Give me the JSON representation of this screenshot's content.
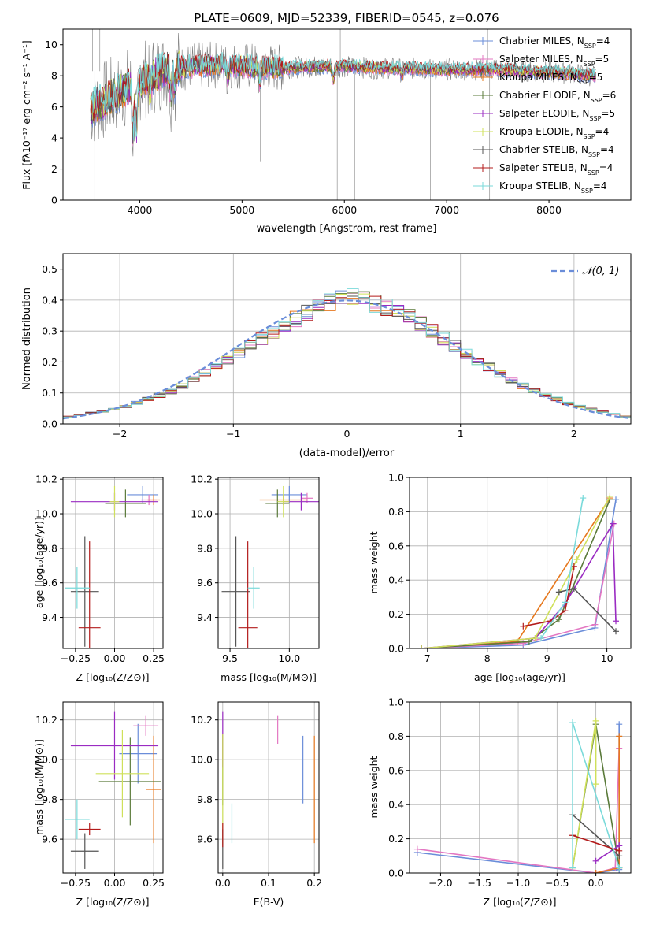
{
  "colors": {
    "Chabrier MILES": "#6a8dd9",
    "Salpeter MILES": "#e377c2",
    "Kroupa MILES": "#e6781e",
    "Chabrier ELODIE": "#5a7a3a",
    "Salpeter ELODIE": "#9a2bc2",
    "Kroupa ELODIE": "#cfe05a",
    "Chabrier STELIB": "#555555",
    "Salpeter STELIB": "#b31b1b",
    "Kroupa STELIB": "#7adada",
    "normal": "#6a8dd9",
    "data": "#808080"
  },
  "chart_data": [
    {
      "type": "line",
      "title": "PLATE=0609, MJD=52339, FIBERID=0545, z=0.076",
      "xlabel": "wavelength [Angstrom, rest frame]",
      "ylabel": "Flux [fλ10⁻¹⁷ erg cm⁻² s⁻¹ A⁻¹]",
      "xlim": [
        3250,
        8800
      ],
      "ylim": [
        0,
        11
      ],
      "xticks": [
        4000,
        5000,
        6000,
        7000,
        8000
      ],
      "yticks": [
        0,
        2,
        4,
        6,
        8,
        10
      ],
      "legend": [
        "Chabrier MILES, N_SSP=4",
        "Salpeter MILES, N_SSP=5",
        "Kroupa MILES, N_SSP=5",
        "Chabrier ELODIE, N_SSP=6",
        "Salpeter ELODIE, N_SSP=5",
        "Kroupa ELODIE, N_SSP=4",
        "Chabrier STELIB, N_SSP=4",
        "Salpeter STELIB, N_SSP=4",
        "Kroupa STELIB, N_SSP=4"
      ],
      "legend_position": "right",
      "series_note": "observed spectrum (grey) from ~3550 to ~8450 A, flux ~6-10.5 with deep absorption in the blue; model fits overlaid",
      "continuum": {
        "x": [
          3500,
          3700,
          3900,
          4100,
          4300,
          4500,
          4800,
          5100,
          5400,
          5700,
          6000,
          6300,
          6600,
          6900,
          7200,
          7500,
          7800,
          8100,
          8450
        ],
        "y": [
          5.8,
          6.6,
          7.3,
          8.0,
          8.4,
          8.6,
          8.7,
          8.6,
          8.5,
          8.6,
          8.6,
          8.5,
          8.5,
          8.4,
          8.4,
          8.4,
          8.3,
          8.2,
          8.0
        ]
      }
    },
    {
      "type": "line",
      "xlabel": "(data-model)/error",
      "ylabel": "Normed distribution",
      "xlim": [
        -2.5,
        2.5
      ],
      "ylim": [
        0,
        0.55
      ],
      "xticks": [
        -2,
        -1,
        0,
        1,
        2
      ],
      "yticks": [
        0.0,
        0.1,
        0.2,
        0.3,
        0.4,
        0.5
      ],
      "legend": [
        "𝒩(0, 1)"
      ],
      "legend_position": "top-right",
      "bin_edges_step": 0.1,
      "histogram_envelope": {
        "x": [
          -2.5,
          -2.0,
          -1.5,
          -1.0,
          -0.5,
          0.0,
          0.5,
          1.0,
          1.5,
          2.0,
          2.5
        ],
        "y": [
          0.02,
          0.05,
          0.11,
          0.22,
          0.33,
          0.42,
          0.36,
          0.24,
          0.13,
          0.06,
          0.02
        ]
      }
    },
    {
      "type": "scatter",
      "xlabel": "Z [log₁₀(Z/Z⊙)]",
      "ylabel": "age  [log₁₀(age/yr)]",
      "xlim": [
        -0.33,
        0.31
      ],
      "ylim": [
        9.22,
        10.21
      ],
      "xticks": [
        -0.25,
        0.0,
        0.25
      ],
      "yticks": [
        9.4,
        9.6,
        9.8,
        10.0,
        10.2
      ],
      "points": [
        {
          "model": "Chabrier MILES",
          "x": 0.18,
          "y": 10.11,
          "xerr": 0.1,
          "yerr": 0.05
        },
        {
          "model": "Salpeter MILES",
          "x": 0.22,
          "y": 10.08,
          "xerr": 0.05,
          "yerr": 0.03
        },
        {
          "model": "Kroupa MILES",
          "x": 0.25,
          "y": 10.08,
          "xerr": 0.04,
          "yerr": 0.03
        },
        {
          "model": "Chabrier ELODIE",
          "x": 0.07,
          "y": 10.06,
          "xerr": 0.13,
          "yerr": 0.08
        },
        {
          "model": "Salpeter ELODIE",
          "x": 0.0,
          "y": 10.07,
          "xerr": 0.28,
          "yerr": 0.05
        },
        {
          "model": "Kroupa ELODIE",
          "x": 0.0,
          "y": 10.07,
          "xerr": 0.03,
          "yerr": 0.09
        },
        {
          "model": "Chabrier STELIB",
          "x": -0.19,
          "y": 9.55,
          "xerr": 0.09,
          "yerr": 0.32
        },
        {
          "model": "Salpeter STELIB",
          "x": -0.16,
          "y": 9.34,
          "xerr": 0.07,
          "yerr": 0.5
        },
        {
          "model": "Kroupa STELIB",
          "x": -0.24,
          "y": 9.57,
          "xerr": 0.08,
          "yerr": 0.12
        }
      ]
    },
    {
      "type": "scatter",
      "xlabel": "mass [log₁₀(M/M⊙)]",
      "ylabel": "",
      "xlim": [
        9.4,
        10.25
      ],
      "ylim": [
        9.22,
        10.21
      ],
      "xticks": [
        9.5,
        10.0
      ],
      "yticks": [
        9.4,
        9.6,
        9.8,
        10.0,
        10.2
      ],
      "points": [
        {
          "model": "Chabrier MILES",
          "x": 10.0,
          "y": 10.11,
          "xerr": 0.15,
          "yerr": 0.05
        },
        {
          "model": "Salpeter MILES",
          "x": 10.15,
          "y": 10.09,
          "xerr": 0.05,
          "yerr": 0.03
        },
        {
          "model": "Kroupa MILES",
          "x": 9.95,
          "y": 10.08,
          "xerr": 0.2,
          "yerr": 0.03
        },
        {
          "model": "Chabrier ELODIE",
          "x": 9.9,
          "y": 10.06,
          "xerr": 0.1,
          "yerr": 0.08
        },
        {
          "model": "Salpeter ELODIE",
          "x": 10.1,
          "y": 10.07,
          "xerr": 0.15,
          "yerr": 0.05
        },
        {
          "model": "Kroupa ELODIE",
          "x": 9.95,
          "y": 10.07,
          "xerr": 0.05,
          "yerr": 0.09
        },
        {
          "model": "Chabrier STELIB",
          "x": 9.55,
          "y": 9.55,
          "xerr": 0.12,
          "yerr": 0.32
        },
        {
          "model": "Salpeter STELIB",
          "x": 9.65,
          "y": 9.34,
          "xerr": 0.08,
          "yerr": 0.5
        },
        {
          "model": "Kroupa STELIB",
          "x": 9.7,
          "y": 9.57,
          "xerr": 0.05,
          "yerr": 0.12
        }
      ]
    },
    {
      "type": "line",
      "xlabel": "age  [log₁₀(age/yr)]",
      "ylabel": "mass weight",
      "xlim": [
        6.7,
        10.4
      ],
      "ylim": [
        0,
        1.0
      ],
      "xticks": [
        7,
        8,
        9,
        10
      ],
      "yticks": [
        0.0,
        0.2,
        0.4,
        0.6,
        0.8,
        1.0
      ],
      "series": [
        {
          "model": "Chabrier MILES",
          "x": [
            6.9,
            8.6,
            9.8,
            10.15
          ],
          "y": [
            0.0,
            0.02,
            0.12,
            0.87
          ]
        },
        {
          "model": "Salpeter MILES",
          "x": [
            6.9,
            8.6,
            9.8,
            10.12
          ],
          "y": [
            0.0,
            0.03,
            0.14,
            0.73
          ]
        },
        {
          "model": "Kroupa MILES",
          "x": [
            6.9,
            8.5,
            10.05
          ],
          "y": [
            0.0,
            0.04,
            0.88
          ]
        },
        {
          "model": "Chabrier ELODIE",
          "x": [
            6.9,
            8.7,
            9.2,
            10.05
          ],
          "y": [
            0.0,
            0.04,
            0.17,
            0.87
          ]
        },
        {
          "model": "Salpeter ELODIE",
          "x": [
            6.9,
            8.8,
            9.3,
            10.1,
            10.15
          ],
          "y": [
            0.0,
            0.06,
            0.26,
            0.73,
            0.16
          ]
        },
        {
          "model": "Kroupa ELODIE",
          "x": [
            6.9,
            8.8,
            9.5,
            10.05
          ],
          "y": [
            0.0,
            0.06,
            0.52,
            0.89
          ]
        },
        {
          "model": "Chabrier STELIB",
          "x": [
            9.2,
            9.45,
            10.15
          ],
          "y": [
            0.33,
            0.35,
            0.1
          ]
        },
        {
          "model": "Salpeter STELIB",
          "x": [
            8.6,
            9.05,
            9.3,
            9.45
          ],
          "y": [
            0.13,
            0.16,
            0.22,
            0.48
          ]
        },
        {
          "model": "Kroupa STELIB",
          "x": [
            8.9,
            9.3,
            9.6
          ],
          "y": [
            0.06,
            0.27,
            0.88
          ]
        }
      ]
    },
    {
      "type": "scatter",
      "xlabel": "Z [log₁₀(Z/Z⊙)]",
      "ylabel": "mass [log₁₀(M/M⊙)]",
      "xlim": [
        -0.33,
        0.31
      ],
      "ylim": [
        9.43,
        10.29
      ],
      "xticks": [
        -0.25,
        0.0,
        0.25
      ],
      "yticks": [
        9.6,
        9.8,
        10.0,
        10.2
      ],
      "points": [
        {
          "model": "Chabrier MILES",
          "x": 0.15,
          "y": 10.03,
          "xerr": 0.12,
          "yerr": 0.15
        },
        {
          "model": "Salpeter MILES",
          "x": 0.2,
          "y": 10.17,
          "xerr": 0.08,
          "yerr": 0.05
        },
        {
          "model": "Kroupa MILES",
          "x": 0.25,
          "y": 9.85,
          "xerr": 0.05,
          "yerr": 0.27
        },
        {
          "model": "Chabrier ELODIE",
          "x": 0.1,
          "y": 9.89,
          "xerr": 0.2,
          "yerr": 0.22
        },
        {
          "model": "Salpeter ELODIE",
          "x": 0.0,
          "y": 10.07,
          "xerr": 0.28,
          "yerr": 0.17
        },
        {
          "model": "Kroupa ELODIE",
          "x": 0.05,
          "y": 9.93,
          "xerr": 0.17,
          "yerr": 0.22
        },
        {
          "model": "Chabrier STELIB",
          "x": -0.19,
          "y": 9.54,
          "xerr": 0.09,
          "yerr": 0.09
        },
        {
          "model": "Salpeter STELIB",
          "x": -0.16,
          "y": 9.65,
          "xerr": 0.07,
          "yerr": 0.03
        },
        {
          "model": "Kroupa STELIB",
          "x": -0.24,
          "y": 9.7,
          "xerr": 0.08,
          "yerr": 0.1
        }
      ]
    },
    {
      "type": "scatter",
      "xlabel": "E(B-V)",
      "ylabel": "",
      "xlim": [
        -0.01,
        0.21
      ],
      "ylim": [
        9.43,
        10.29
      ],
      "xticks": [
        0.0,
        0.1,
        0.2
      ],
      "yticks": [
        9.6,
        9.8,
        10.0,
        10.2
      ],
      "points": [
        {
          "model": "Chabrier MILES",
          "x": 0.175,
          "y": 9.95,
          "xerr": 0,
          "yerr": 0.17
        },
        {
          "model": "Salpeter MILES",
          "x": 0.12,
          "y": 10.15,
          "xerr": 0,
          "yerr": 0.07
        },
        {
          "model": "Kroupa MILES",
          "x": 0.2,
          "y": 9.85,
          "xerr": 0,
          "yerr": 0.27
        },
        {
          "model": "Chabrier ELODIE",
          "x": 0.0,
          "y": 9.95,
          "xerr": 0,
          "yerr": 0.18
        },
        {
          "model": "Salpeter ELODIE",
          "x": 0.0,
          "y": 10.1,
          "xerr": 0,
          "yerr": 0.14
        },
        {
          "model": "Kroupa ELODIE",
          "x": 0.0,
          "y": 9.85,
          "xerr": 0,
          "yerr": 0.28
        },
        {
          "model": "Chabrier STELIB",
          "x": 0.0,
          "y": 9.55,
          "xerr": 0,
          "yerr": 0.1
        },
        {
          "model": "Salpeter STELIB",
          "x": 0.0,
          "y": 9.62,
          "xerr": 0,
          "yerr": 0.06
        },
        {
          "model": "Kroupa STELIB",
          "x": 0.02,
          "y": 9.68,
          "xerr": 0,
          "yerr": 0.1
        }
      ]
    },
    {
      "type": "line",
      "xlabel": "Z [log₁₀(Z/Z⊙)]",
      "ylabel": "mass weight",
      "xlim": [
        -2.4,
        0.45
      ],
      "ylim": [
        0,
        1.0
      ],
      "xticks": [
        -2.0,
        -1.5,
        -1.0,
        -0.5,
        0.0
      ],
      "yticks": [
        0.0,
        0.2,
        0.4,
        0.6,
        0.8,
        1.0
      ],
      "series": [
        {
          "model": "Chabrier MILES",
          "x": [
            -2.3,
            0.0,
            0.3,
            0.3
          ],
          "y": [
            0.12,
            0.0,
            0.02,
            0.87
          ]
        },
        {
          "model": "Salpeter MILES",
          "x": [
            -2.3,
            0.0,
            0.25,
            0.3
          ],
          "y": [
            0.14,
            0.0,
            0.03,
            0.73
          ]
        },
        {
          "model": "Kroupa MILES",
          "x": [
            0.0,
            0.3,
            0.3
          ],
          "y": [
            0.0,
            0.03,
            0.8
          ]
        },
        {
          "model": "Chabrier ELODIE",
          "x": [
            -0.3,
            0.0,
            0.3
          ],
          "y": [
            0.03,
            0.87,
            0.03
          ]
        },
        {
          "model": "Salpeter ELODIE",
          "x": [
            0.0,
            0.3,
            0.3
          ],
          "y": [
            0.07,
            0.16,
            0.16
          ]
        },
        {
          "model": "Kroupa ELODIE",
          "x": [
            -0.3,
            0.0,
            0.0
          ],
          "y": [
            0.03,
            0.89,
            0.52
          ]
        },
        {
          "model": "Chabrier STELIB",
          "x": [
            -0.3,
            0.3
          ],
          "y": [
            0.34,
            0.1
          ]
        },
        {
          "model": "Salpeter STELIB",
          "x": [
            -0.3,
            0.3
          ],
          "y": [
            0.22,
            0.13
          ]
        },
        {
          "model": "Kroupa STELIB",
          "x": [
            -0.3,
            -0.3,
            0.3
          ],
          "y": [
            0.03,
            0.88,
            0.03
          ]
        }
      ]
    }
  ]
}
